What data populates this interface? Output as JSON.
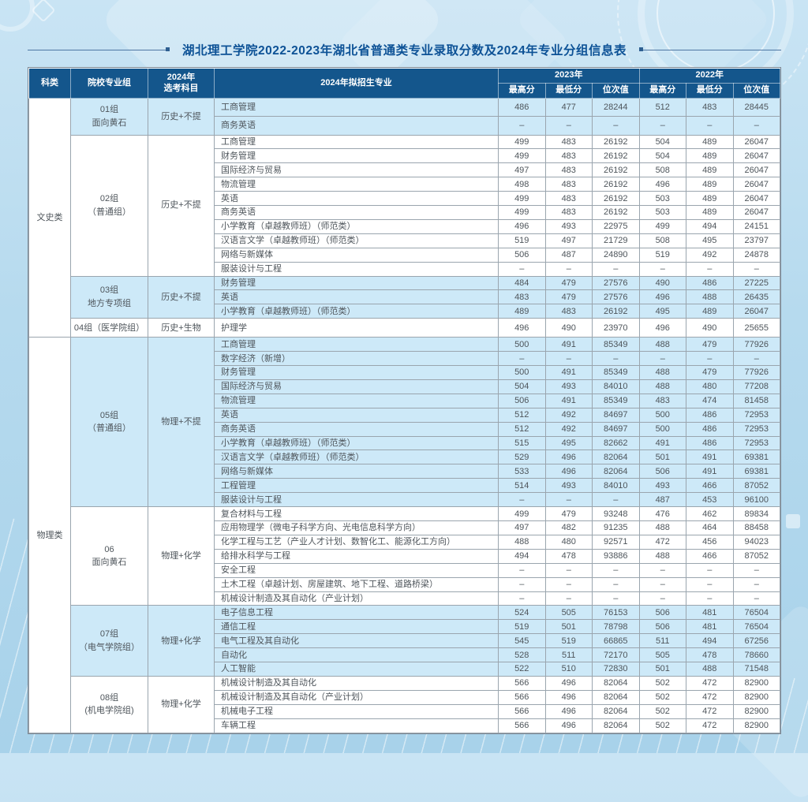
{
  "title": "湖北理工学院2022-2023年湖北省普通类专业录取分数及2024年专业分组信息表",
  "colors": {
    "header_bg": "#14568c",
    "highlight_row": "#cde9f8",
    "title_color": "#0d5296",
    "page_bg": "#b6daee"
  },
  "table": {
    "headers": {
      "category": "科类",
      "group": "院校专业组",
      "subjects_line1": "2024年",
      "subjects_line2": "选考科目",
      "major": "2024年拟招生专业",
      "year2023": "2023年",
      "year2022": "2022年",
      "max": "最高分",
      "min": "最低分",
      "rank": "位次值"
    },
    "categories": [
      {
        "name": "文史类",
        "groups": [
          {
            "label": [
              "01组",
              "面向黄石"
            ],
            "subjects": "历史+不提",
            "highlight": true,
            "rows": [
              {
                "major": "工商管理",
                "scores": [
                  "486",
                  "477",
                  "28244",
                  "512",
                  "483",
                  "28445"
                ]
              },
              {
                "major": "商务英语",
                "scores": [
                  "–",
                  "–",
                  "–",
                  "–",
                  "–",
                  "–"
                ]
              }
            ]
          },
          {
            "label": [
              "02组",
              "（普通组）"
            ],
            "subjects": "历史+不提",
            "highlight": false,
            "rows": [
              {
                "major": "工商管理",
                "scores": [
                  "499",
                  "483",
                  "26192",
                  "504",
                  "489",
                  "26047"
                ]
              },
              {
                "major": "财务管理",
                "scores": [
                  "499",
                  "483",
                  "26192",
                  "504",
                  "489",
                  "26047"
                ]
              },
              {
                "major": "国际经济与贸易",
                "scores": [
                  "497",
                  "483",
                  "26192",
                  "508",
                  "489",
                  "26047"
                ]
              },
              {
                "major": "物流管理",
                "scores": [
                  "498",
                  "483",
                  "26192",
                  "496",
                  "489",
                  "26047"
                ]
              },
              {
                "major": "英语",
                "scores": [
                  "499",
                  "483",
                  "26192",
                  "503",
                  "489",
                  "26047"
                ]
              },
              {
                "major": "商务英语",
                "scores": [
                  "499",
                  "483",
                  "26192",
                  "503",
                  "489",
                  "26047"
                ]
              },
              {
                "major": "小学教育（卓越教师班）（师范类）",
                "scores": [
                  "496",
                  "493",
                  "22975",
                  "499",
                  "494",
                  "24151"
                ]
              },
              {
                "major": "汉语言文学（卓越教师班）（师范类）",
                "scores": [
                  "519",
                  "497",
                  "21729",
                  "508",
                  "495",
                  "23797"
                ]
              },
              {
                "major": "网络与新媒体",
                "scores": [
                  "506",
                  "487",
                  "24890",
                  "519",
                  "492",
                  "24878"
                ]
              },
              {
                "major": "服装设计与工程",
                "scores": [
                  "–",
                  "–",
                  "–",
                  "–",
                  "–",
                  "–"
                ]
              }
            ]
          },
          {
            "label": [
              "03组",
              "地方专项组"
            ],
            "subjects": "历史+不提",
            "highlight": true,
            "rows": [
              {
                "major": "财务管理",
                "scores": [
                  "484",
                  "479",
                  "27576",
                  "490",
                  "486",
                  "27225"
                ]
              },
              {
                "major": "英语",
                "scores": [
                  "483",
                  "479",
                  "27576",
                  "496",
                  "488",
                  "26435"
                ]
              },
              {
                "major": "小学教育（卓越教师班）（师范类）",
                "scores": [
                  "489",
                  "483",
                  "26192",
                  "495",
                  "489",
                  "26047"
                ]
              }
            ]
          },
          {
            "label": [
              "04组（医学院组）"
            ],
            "subjects": "历史+生物",
            "highlight": false,
            "rows": [
              {
                "major": "护理学",
                "scores": [
                  "496",
                  "490",
                  "23970",
                  "496",
                  "490",
                  "25655"
                ]
              }
            ]
          }
        ]
      },
      {
        "name": "物理类",
        "groups": [
          {
            "label": [
              "05组",
              "（普通组）"
            ],
            "subjects": "物理+不提",
            "highlight": true,
            "rows": [
              {
                "major": "工商管理",
                "scores": [
                  "500",
                  "491",
                  "85349",
                  "488",
                  "479",
                  "77926"
                ]
              },
              {
                "major": "数字经济（新增）",
                "scores": [
                  "–",
                  "–",
                  "–",
                  "–",
                  "–",
                  "–"
                ]
              },
              {
                "major": "财务管理",
                "scores": [
                  "500",
                  "491",
                  "85349",
                  "488",
                  "479",
                  "77926"
                ]
              },
              {
                "major": "国际经济与贸易",
                "scores": [
                  "504",
                  "493",
                  "84010",
                  "488",
                  "480",
                  "77208"
                ]
              },
              {
                "major": "物流管理",
                "scores": [
                  "506",
                  "491",
                  "85349",
                  "483",
                  "474",
                  "81458"
                ]
              },
              {
                "major": "英语",
                "scores": [
                  "512",
                  "492",
                  "84697",
                  "500",
                  "486",
                  "72953"
                ]
              },
              {
                "major": "商务英语",
                "scores": [
                  "512",
                  "492",
                  "84697",
                  "500",
                  "486",
                  "72953"
                ]
              },
              {
                "major": "小学教育（卓越教师班）（师范类）",
                "scores": [
                  "515",
                  "495",
                  "82662",
                  "491",
                  "486",
                  "72953"
                ]
              },
              {
                "major": "汉语言文学（卓越教师班）（师范类）",
                "scores": [
                  "529",
                  "496",
                  "82064",
                  "501",
                  "491",
                  "69381"
                ]
              },
              {
                "major": "网络与新媒体",
                "scores": [
                  "533",
                  "496",
                  "82064",
                  "506",
                  "491",
                  "69381"
                ]
              },
              {
                "major": "工程管理",
                "scores": [
                  "514",
                  "493",
                  "84010",
                  "493",
                  "466",
                  "87052"
                ]
              },
              {
                "major": "服装设计与工程",
                "scores": [
                  "–",
                  "–",
                  "–",
                  "487",
                  "453",
                  "96100"
                ]
              }
            ]
          },
          {
            "label": [
              "06",
              "面向黄石"
            ],
            "subjects": "物理+化学",
            "highlight": false,
            "rows": [
              {
                "major": "复合材料与工程",
                "scores": [
                  "499",
                  "479",
                  "93248",
                  "476",
                  "462",
                  "89834"
                ]
              },
              {
                "major": "应用物理学（微电子科学方向、光电信息科学方向）",
                "scores": [
                  "497",
                  "482",
                  "91235",
                  "488",
                  "464",
                  "88458"
                ]
              },
              {
                "major": "化学工程与工艺（产业人才计划、数智化工、能源化工方向）",
                "scores": [
                  "488",
                  "480",
                  "92571",
                  "472",
                  "456",
                  "94023"
                ]
              },
              {
                "major": "给排水科学与工程",
                "scores": [
                  "494",
                  "478",
                  "93886",
                  "488",
                  "466",
                  "87052"
                ]
              },
              {
                "major": "安全工程",
                "scores": [
                  "–",
                  "–",
                  "–",
                  "–",
                  "–",
                  "–"
                ]
              },
              {
                "major": "土木工程（卓越计划、房屋建筑、地下工程、道路桥梁）",
                "scores": [
                  "–",
                  "–",
                  "–",
                  "–",
                  "–",
                  "–"
                ]
              },
              {
                "major": "机械设计制造及其自动化（产业计划）",
                "scores": [
                  "–",
                  "–",
                  "–",
                  "–",
                  "–",
                  "–"
                ]
              }
            ]
          },
          {
            "label": [
              "07组",
              "（电气学院组）"
            ],
            "subjects": "物理+化学",
            "highlight": true,
            "rows": [
              {
                "major": "电子信息工程",
                "scores": [
                  "524",
                  "505",
                  "76153",
                  "506",
                  "481",
                  "76504"
                ]
              },
              {
                "major": "通信工程",
                "scores": [
                  "519",
                  "501",
                  "78798",
                  "506",
                  "481",
                  "76504"
                ]
              },
              {
                "major": "电气工程及其自动化",
                "scores": [
                  "545",
                  "519",
                  "66865",
                  "511",
                  "494",
                  "67256"
                ]
              },
              {
                "major": "自动化",
                "scores": [
                  "528",
                  "511",
                  "72170",
                  "505",
                  "478",
                  "78660"
                ]
              },
              {
                "major": "人工智能",
                "scores": [
                  "522",
                  "510",
                  "72830",
                  "501",
                  "488",
                  "71548"
                ]
              }
            ]
          },
          {
            "label": [
              "08组",
              "(机电学院组)"
            ],
            "subjects": "物理+化学",
            "highlight": false,
            "rows": [
              {
                "major": "机械设计制造及其自动化",
                "scores": [
                  "566",
                  "496",
                  "82064",
                  "502",
                  "472",
                  "82900"
                ]
              },
              {
                "major": "机械设计制造及其自动化（产业计划）",
                "scores": [
                  "566",
                  "496",
                  "82064",
                  "502",
                  "472",
                  "82900"
                ]
              },
              {
                "major": "机械电子工程",
                "scores": [
                  "566",
                  "496",
                  "82064",
                  "502",
                  "472",
                  "82900"
                ]
              },
              {
                "major": "车辆工程",
                "scores": [
                  "566",
                  "496",
                  "82064",
                  "502",
                  "472",
                  "82900"
                ]
              }
            ]
          }
        ]
      }
    ]
  }
}
